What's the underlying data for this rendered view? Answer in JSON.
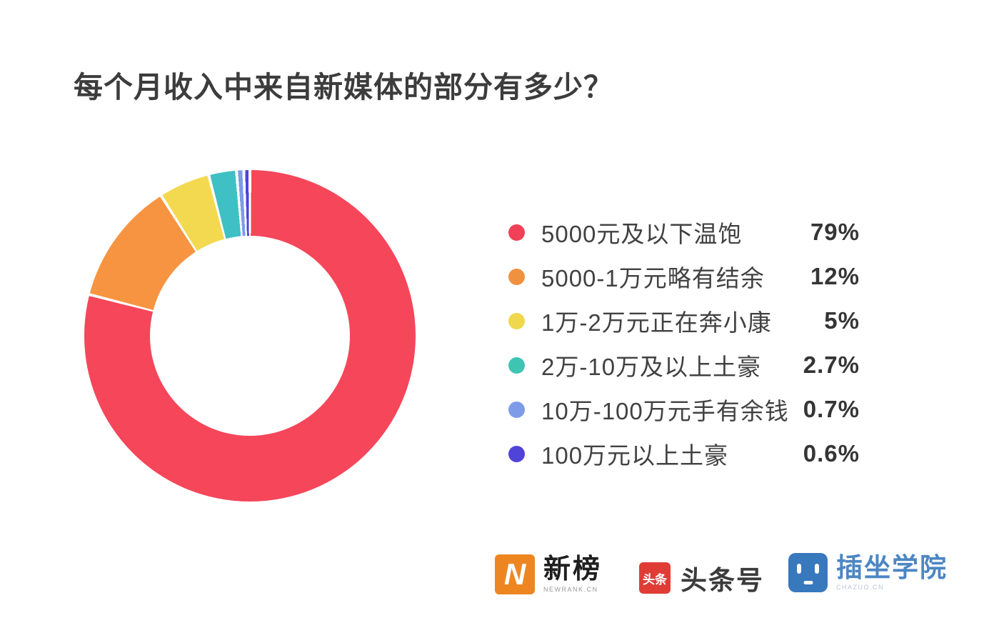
{
  "title": "每个月收入中来自新媒体的部分有多少？",
  "chart_data": {
    "type": "pie",
    "subtype": "donut",
    "title": "每个月收入中来自新媒体的部分有多少？",
    "start_angle_deg": 0,
    "direction": "clockwise",
    "inner_radius_ratio": 0.6,
    "legend_position": "right",
    "categories": [
      "5000元及以下温饱",
      "5000-1万元略有结余",
      "1万-2万元正在奔小康",
      "2万-10万及以上土豪",
      "10万-100万元手有余钱",
      "100万元以上土豪"
    ],
    "values": [
      79,
      12,
      5,
      2.7,
      0.7,
      0.6
    ],
    "value_labels": [
      "79%",
      "12%",
      "5%",
      "2.7%",
      "0.7%",
      "0.6%"
    ],
    "colors": [
      "#F5465A",
      "#F79441",
      "#F3D94F",
      "#3FC0C4",
      "#7D9BE8",
      "#4F43D8"
    ]
  },
  "legend": {
    "items": [
      {
        "label": "5000元及以下温饱",
        "value": "79%",
        "color": "#F04157"
      },
      {
        "label": "5000-1万元略有结余",
        "value": "12%",
        "color": "#F09140"
      },
      {
        "label": "1万-2万元正在奔小康",
        "value": "5%",
        "color": "#EFD84E"
      },
      {
        "label": "2万-10万及以上土豪",
        "value": "2.7%",
        "color": "#3FC4B3"
      },
      {
        "label": "10万-100万元手有余钱",
        "value": "0.7%",
        "color": "#7D9BE8"
      },
      {
        "label": "100万元以上土豪",
        "value": "0.6%",
        "color": "#4F43D8"
      }
    ]
  },
  "footer": {
    "logos": {
      "newrank": {
        "icon_text": "N",
        "name": "新榜",
        "subtext": "NEWRANK.CN",
        "icon_color": "#ED8621"
      },
      "toutiao": {
        "icon_text": "头条",
        "name": "头条号",
        "icon_color": "#E03C36"
      },
      "chazuo": {
        "name": "插坐学院",
        "subtext": "CHAZUO.CN",
        "icon_color": "#3878BC"
      }
    }
  }
}
